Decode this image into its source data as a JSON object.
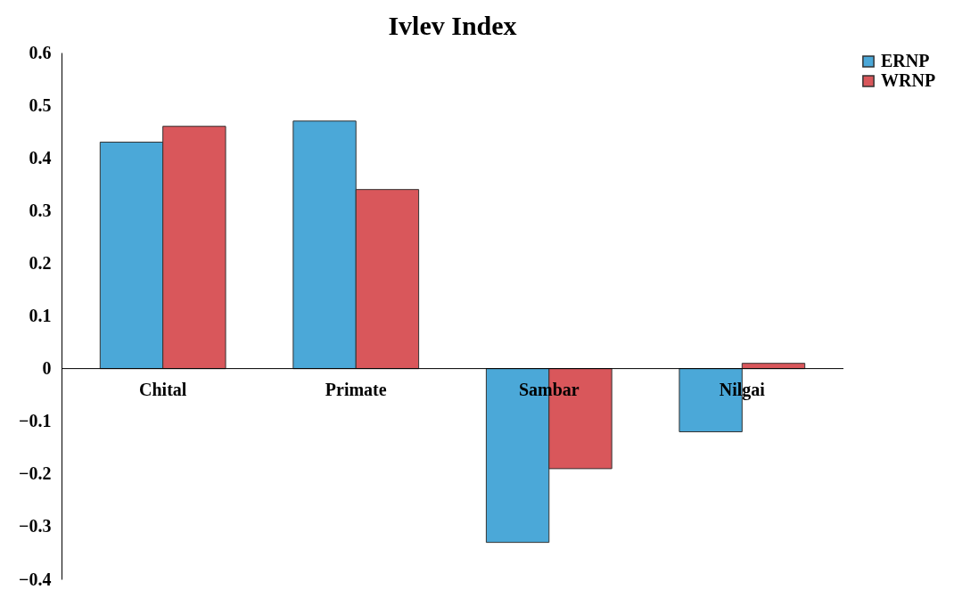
{
  "chart_data": {
    "type": "bar",
    "title": "Ivlev Index",
    "categories": [
      "Chital",
      "Primate",
      "Sambar",
      "Nilgai"
    ],
    "series": [
      {
        "name": "ERNP",
        "color": "#4ba8d8",
        "values": [
          0.43,
          0.47,
          -0.33,
          -0.12
        ]
      },
      {
        "name": "WRNP",
        "color": "#d9575b",
        "values": [
          0.46,
          0.34,
          -0.19,
          0.01
        ]
      }
    ],
    "ylim": [
      -0.4,
      0.6
    ],
    "yticks": [
      -0.4,
      -0.3,
      -0.2,
      -0.1,
      0,
      0.1,
      0.2,
      0.3,
      0.4,
      0.5,
      0.6
    ],
    "grid": false,
    "legend": "right"
  }
}
